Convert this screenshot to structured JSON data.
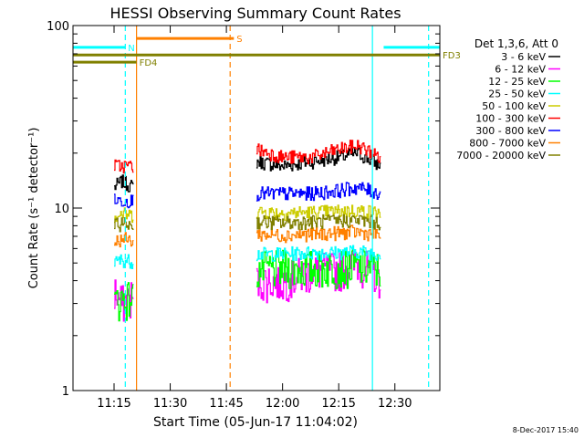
{
  "chart_data": {
    "type": "line",
    "title": "HESSI Observing Summary Count Rates",
    "xlabel": "Start Time (05-Jun-17 11:04:02)",
    "ylabel": "Count Rate (s⁻¹ detector⁻¹)",
    "footer": "8-Dec-2017 15:40",
    "y_scale": "log",
    "ylim": [
      1,
      100
    ],
    "xlim": [
      "11:04:02",
      "12:42:00"
    ],
    "x_ticks": [
      "11:15",
      "11:30",
      "11:45",
      "12:00",
      "12:15",
      "12:30"
    ],
    "y_ticks": [
      "1",
      "10",
      "100"
    ],
    "legend_title": "Det 1,3,6, Att 0",
    "legend_position": "top-right",
    "series": [
      {
        "name": "3 - 6 keV",
        "color": "#000000",
        "values": [
          [
            "11:15",
            13
          ],
          [
            "11:17",
            14
          ],
          [
            "11:20",
            13
          ],
          [
            "11:53",
            18
          ],
          [
            "12:00",
            17
          ],
          [
            "12:08",
            18
          ],
          [
            "12:15",
            19
          ],
          [
            "12:20",
            20
          ],
          [
            "12:26",
            17
          ]
        ]
      },
      {
        "name": "6 - 12 keV",
        "color": "#ff00ff",
        "values": [
          [
            "11:15",
            3.5
          ],
          [
            "11:17",
            3.0
          ],
          [
            "11:20",
            3.3
          ],
          [
            "11:53",
            4.0
          ],
          [
            "12:00",
            4.0
          ],
          [
            "12:08",
            4.5
          ],
          [
            "12:15",
            4.6
          ],
          [
            "12:20",
            5.0
          ],
          [
            "12:26",
            4.2
          ]
        ]
      },
      {
        "name": "12 - 25 keV",
        "color": "#00ff00",
        "values": [
          [
            "11:15",
            3.0
          ],
          [
            "11:17",
            3.2
          ],
          [
            "11:20",
            3.2
          ],
          [
            "11:53",
            4.6
          ],
          [
            "12:00",
            4.7
          ],
          [
            "12:08",
            4.7
          ],
          [
            "12:15",
            4.8
          ],
          [
            "12:20",
            4.8
          ],
          [
            "12:26",
            4.6
          ]
        ]
      },
      {
        "name": "25 - 50 keV",
        "color": "#00ffff",
        "values": [
          [
            "11:15",
            5.0
          ],
          [
            "11:17",
            5.2
          ],
          [
            "11:20",
            5.1
          ],
          [
            "11:53",
            5.6
          ],
          [
            "12:00",
            5.6
          ],
          [
            "12:08",
            5.7
          ],
          [
            "12:15",
            5.7
          ],
          [
            "12:20",
            5.8
          ],
          [
            "12:26",
            5.6
          ]
        ]
      },
      {
        "name": "50 - 100 keV",
        "color": "#cccc00",
        "values": [
          [
            "11:15",
            9.0
          ],
          [
            "11:17",
            9.3
          ],
          [
            "11:20",
            9.1
          ],
          [
            "11:53",
            9.6
          ],
          [
            "12:00",
            9.4
          ],
          [
            "12:08",
            9.5
          ],
          [
            "12:15",
            9.6
          ],
          [
            "12:20",
            9.7
          ],
          [
            "12:26",
            9.4
          ]
        ]
      },
      {
        "name": "100 - 300 keV",
        "color": "#ff0000",
        "values": [
          [
            "11:15",
            17
          ],
          [
            "11:17",
            17
          ],
          [
            "11:20",
            17
          ],
          [
            "11:53",
            21
          ],
          [
            "12:00",
            19
          ],
          [
            "12:08",
            19
          ],
          [
            "12:15",
            21
          ],
          [
            "12:20",
            22
          ],
          [
            "12:26",
            19
          ]
        ]
      },
      {
        "name": "300 - 800 keV",
        "color": "#0000ff",
        "values": [
          [
            "11:15",
            11
          ],
          [
            "11:17",
            11
          ],
          [
            "11:20",
            11
          ],
          [
            "11:53",
            12
          ],
          [
            "12:00",
            12
          ],
          [
            "12:08",
            12
          ],
          [
            "12:15",
            12.5
          ],
          [
            "12:20",
            13
          ],
          [
            "12:26",
            12
          ]
        ]
      },
      {
        "name": "800 - 7000 keV",
        "color": "#ff8000",
        "values": [
          [
            "11:15",
            6.5
          ],
          [
            "11:17",
            6.8
          ],
          [
            "11:20",
            6.6
          ],
          [
            "11:53",
            7.2
          ],
          [
            "12:00",
            7.1
          ],
          [
            "12:08",
            7.2
          ],
          [
            "12:15",
            7.3
          ],
          [
            "12:20",
            7.4
          ],
          [
            "12:26",
            7.1
          ]
        ]
      },
      {
        "name": "7000 - 20000 keV",
        "color": "#808000",
        "values": [
          [
            "11:15",
            8.0
          ],
          [
            "11:17",
            8.2
          ],
          [
            "11:20",
            8.1
          ],
          [
            "11:53",
            8.4
          ],
          [
            "12:00",
            8.3
          ],
          [
            "12:08",
            8.4
          ],
          [
            "12:15",
            8.5
          ],
          [
            "12:20",
            8.6
          ],
          [
            "12:26",
            8.3
          ]
        ]
      }
    ],
    "flags": [
      {
        "label": "S",
        "color": "#ff8000",
        "level": 85,
        "start": "11:21",
        "end": "11:47"
      },
      {
        "label": "N",
        "color": "#00ffff",
        "level": 76,
        "start": "11:04:02",
        "end": "11:18",
        "segments": [
          [
            "11:04:02",
            "11:18"
          ],
          [
            "12:27",
            "12:42"
          ]
        ]
      },
      {
        "label": "FD3",
        "color": "#808000",
        "level": 69,
        "start": "11:04:02",
        "end": "12:42"
      },
      {
        "label": "FD4",
        "color": "#808000",
        "level": 63,
        "start": "11:04:02",
        "end": "11:21"
      }
    ],
    "vertical_lines": [
      {
        "time": "11:18",
        "color": "#00ffff",
        "style": "dashed"
      },
      {
        "time": "11:21",
        "color": "#ff8000",
        "style": "solid"
      },
      {
        "time": "11:46",
        "color": "#ff8000",
        "style": "dashed"
      },
      {
        "time": "12:24",
        "color": "#00ffff",
        "style": "solid"
      },
      {
        "time": "12:39",
        "color": "#00ffff",
        "style": "dashed"
      }
    ],
    "colors": {
      "axes": "#000000",
      "background": "#ffffff"
    }
  }
}
